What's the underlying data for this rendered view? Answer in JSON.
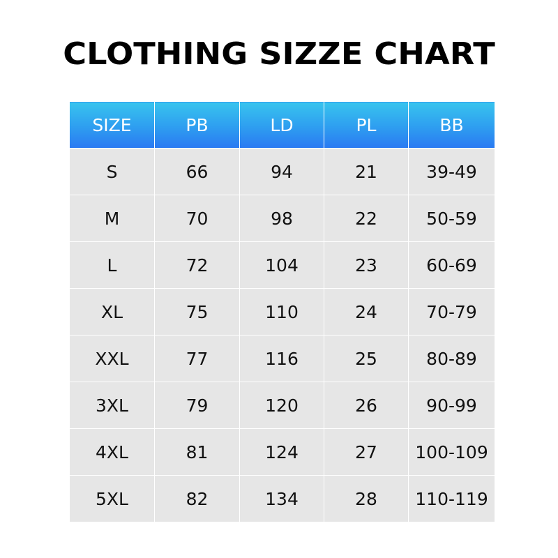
{
  "title": "CLOTHING SIZZE CHART",
  "colors": {
    "header_gradient_top": "#38c4ee",
    "header_gradient_bottom": "#2a79f2",
    "cell_background": "#e6e6e6",
    "header_text": "#ffffff",
    "body_text": "#111111"
  },
  "table": {
    "headers": [
      "SIZE",
      "PB",
      "LD",
      "PL",
      "BB"
    ],
    "rows": [
      [
        "S",
        "66",
        "94",
        "21",
        "39-49"
      ],
      [
        "M",
        "70",
        "98",
        "22",
        "50-59"
      ],
      [
        "L",
        "72",
        "104",
        "23",
        "60-69"
      ],
      [
        "XL",
        "75",
        "110",
        "24",
        "70-79"
      ],
      [
        "XXL",
        "77",
        "116",
        "25",
        "80-89"
      ],
      [
        "3XL",
        "79",
        "120",
        "26",
        "90-99"
      ],
      [
        "4XL",
        "81",
        "124",
        "27",
        "100-109"
      ],
      [
        "5XL",
        "82",
        "134",
        "28",
        "110-119"
      ]
    ]
  }
}
